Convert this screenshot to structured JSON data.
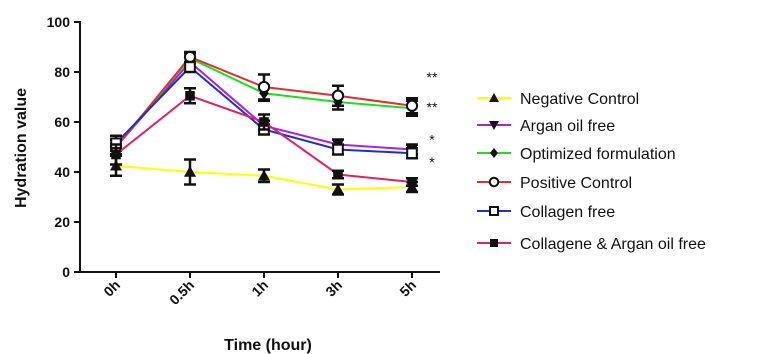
{
  "chart_data": {
    "type": "line",
    "title": "",
    "xlabel": "Time (hour)",
    "ylabel": "Hydration value",
    "categories": [
      "0h",
      "0.5h",
      "1h",
      "3h",
      "5h"
    ],
    "ylim": [
      0,
      100
    ],
    "yticks": [
      "0",
      "20",
      "40",
      "60",
      "80",
      "100"
    ],
    "legend_position": "right",
    "grid": false,
    "series": [
      {
        "name": "Negative Control",
        "color": "#ffff00",
        "marker": "triangle-up",
        "values": [
          42.5,
          40,
          38.5,
          33,
          34
        ],
        "errors": [
          4,
          5,
          2.5,
          2,
          2
        ]
      },
      {
        "name": "Argan oil free",
        "color": "#aa22dd",
        "marker": "triangle-down",
        "values": [
          50,
          84,
          58.5,
          51,
          49
        ],
        "errors": [
          3,
          2,
          2,
          2,
          2
        ]
      },
      {
        "name": "Optimized formulation",
        "color": "#22dd22",
        "marker": "diamond",
        "values": [
          50,
          85.5,
          71.5,
          68,
          65.5
        ],
        "errors": [
          3,
          2,
          3,
          3,
          3
        ]
      },
      {
        "name": "Positive Control",
        "color": "#e03030",
        "marker": "circle-open",
        "values": [
          50,
          86,
          74,
          70.5,
          66.5
        ],
        "errors": [
          3,
          2,
          5,
          4,
          3
        ]
      },
      {
        "name": "Collagen free",
        "color": "#1f2ed0",
        "marker": "square-open",
        "values": [
          51.5,
          82,
          57,
          49,
          47.5
        ],
        "errors": [
          3,
          2,
          2,
          2,
          2
        ]
      },
      {
        "name": "Collagene & Argan oil free",
        "color": "#e0206a",
        "marker": "square",
        "values": [
          47,
          70.5,
          60,
          39,
          36
        ],
        "errors": [
          4,
          3,
          3,
          1.5,
          1.5
        ]
      }
    ],
    "annotations": [
      {
        "text": "**",
        "y": 78
      },
      {
        "text": "**",
        "y": 66
      },
      {
        "text": "*",
        "y": 53
      },
      {
        "text": "*",
        "y": 44
      }
    ]
  }
}
